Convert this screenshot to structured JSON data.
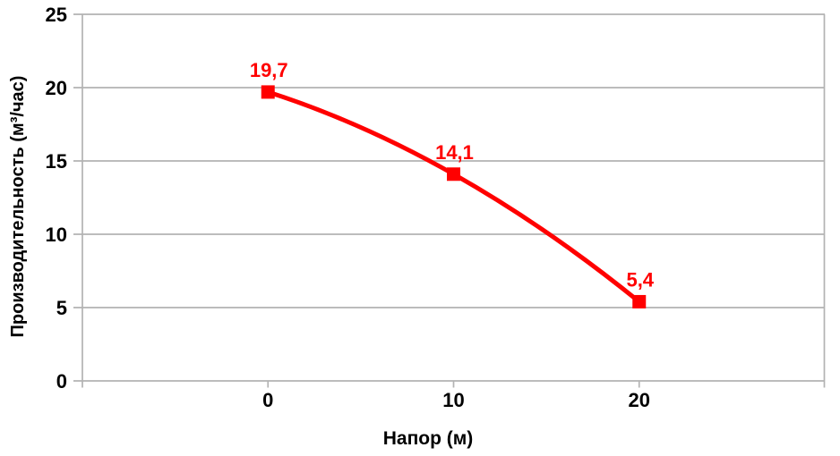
{
  "chart_data": {
    "type": "line",
    "x": [
      0,
      10,
      20
    ],
    "values": [
      19.7,
      14.1,
      5.4
    ],
    "data_labels": [
      "19,7",
      "14,1",
      "5,4"
    ],
    "x_ticks": [
      0,
      10,
      20
    ],
    "x_tick_labels": [
      "0",
      "10",
      "20"
    ],
    "y_ticks": [
      25,
      20,
      15,
      10,
      5,
      0
    ],
    "y_tick_labels": [
      "25",
      "20",
      "15",
      "10",
      "5",
      "0"
    ],
    "title": "",
    "xlabel": "Напор (м)",
    "ylabel": "Производительность (м³/час)",
    "xlim": [
      -10,
      30
    ],
    "ylim": [
      0,
      25
    ],
    "grid": "horizontal",
    "legend": "none",
    "smooth_line": true,
    "marker": "square",
    "colors": {
      "series": "#ff0000",
      "grid": "#b3b3b3",
      "text": "#000000",
      "background": "#ffffff"
    }
  }
}
